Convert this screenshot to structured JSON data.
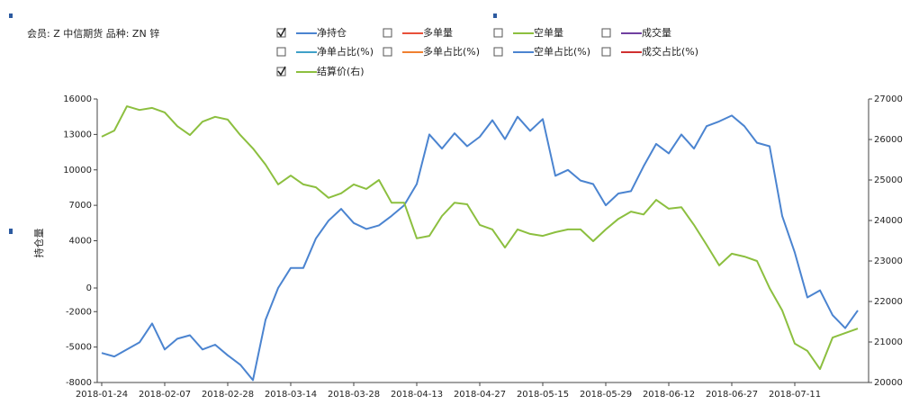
{
  "chart_data": {
    "type": "line",
    "header": "会员: Z 中信期货   品种: ZN 锌",
    "ylabel": "持仓量",
    "categories": [
      "2018-01-24",
      null,
      null,
      null,
      null,
      "2018-02-07",
      null,
      null,
      null,
      null,
      "2018-02-28",
      null,
      null,
      null,
      null,
      "2018-03-14",
      null,
      null,
      null,
      null,
      "2018-03-28",
      null,
      null,
      null,
      null,
      "2018-04-13",
      null,
      null,
      null,
      null,
      "2018-04-27",
      null,
      null,
      null,
      null,
      "2018-05-15",
      null,
      null,
      null,
      null,
      "2018-05-29",
      null,
      null,
      null,
      null,
      "2018-06-12",
      null,
      null,
      null,
      null,
      "2018-06-27",
      null,
      null,
      null,
      null,
      "2018-07-11",
      null,
      null,
      null,
      null,
      null
    ],
    "series": [
      {
        "name": "净持仓",
        "color": "#4b84d0",
        "checked": true,
        "values": [
          -5500,
          -5800,
          -5200,
          -4600,
          -3000,
          -5200,
          -4300,
          -4000,
          -5200,
          -4800,
          -5700,
          -6500,
          -7800,
          -2700,
          0,
          1700,
          1700,
          4200,
          5700,
          6700,
          5500,
          5000,
          5300,
          6100,
          7000,
          8800,
          13000,
          11800,
          13100,
          12000,
          12800,
          14200,
          12600,
          14500,
          13300,
          14300,
          9500,
          10000,
          9100,
          8800,
          7000,
          8000,
          8200,
          10300,
          12200,
          11400,
          13000,
          11800,
          13700,
          14100,
          14600,
          13700,
          12300,
          12000,
          6100,
          3000,
          -800,
          -200,
          -2300,
          -3400,
          -1900
        ]
      },
      {
        "name": "结算价(右)",
        "color": "#8cbf3f",
        "checked": true,
        "axis": "y2",
        "values": [
          26070,
          26220,
          26820,
          26730,
          26780,
          26670,
          26330,
          26110,
          26440,
          26560,
          26490,
          26110,
          25780,
          25380,
          24890,
          25110,
          24890,
          24820,
          24560,
          24670,
          24890,
          24780,
          25000,
          24440,
          24440,
          23560,
          23620,
          24110,
          24440,
          24400,
          23890,
          23780,
          23330,
          23780,
          23670,
          23620,
          23710,
          23780,
          23780,
          23490,
          23780,
          24040,
          24220,
          24150,
          24510,
          24290,
          24330,
          23890,
          23400,
          22890,
          23180,
          23110,
          23000,
          22330,
          21780,
          20960,
          20780,
          20330,
          21110,
          21220,
          21330
        ]
      }
    ],
    "inactive_legend": [
      {
        "name": "多单量",
        "color": "#e8503a",
        "checked": false
      },
      {
        "name": "空单量",
        "color": "#8cbf3f",
        "checked": false
      },
      {
        "name": "成交量",
        "color": "#7040a0",
        "checked": false
      },
      {
        "name": "净单占比(%)",
        "color": "#3fa0c8",
        "checked": false
      },
      {
        "name": "多单占比(%)",
        "color": "#f08030",
        "checked": false
      },
      {
        "name": "空单占比(%)",
        "color": "#4b84d0",
        "checked": false
      },
      {
        "name": "成交占比(%)",
        "color": "#d03030",
        "checked": false
      }
    ],
    "ylim": [
      -8000,
      16000
    ],
    "yticks": [
      16000,
      13000,
      10000,
      7000,
      4000,
      0,
      -2000,
      -5000,
      -8000
    ],
    "y2lim": [
      20000,
      27000
    ],
    "y2ticks": [
      27000,
      26000,
      25000,
      24000,
      23000,
      22000,
      21000,
      20000
    ],
    "grid": false
  }
}
